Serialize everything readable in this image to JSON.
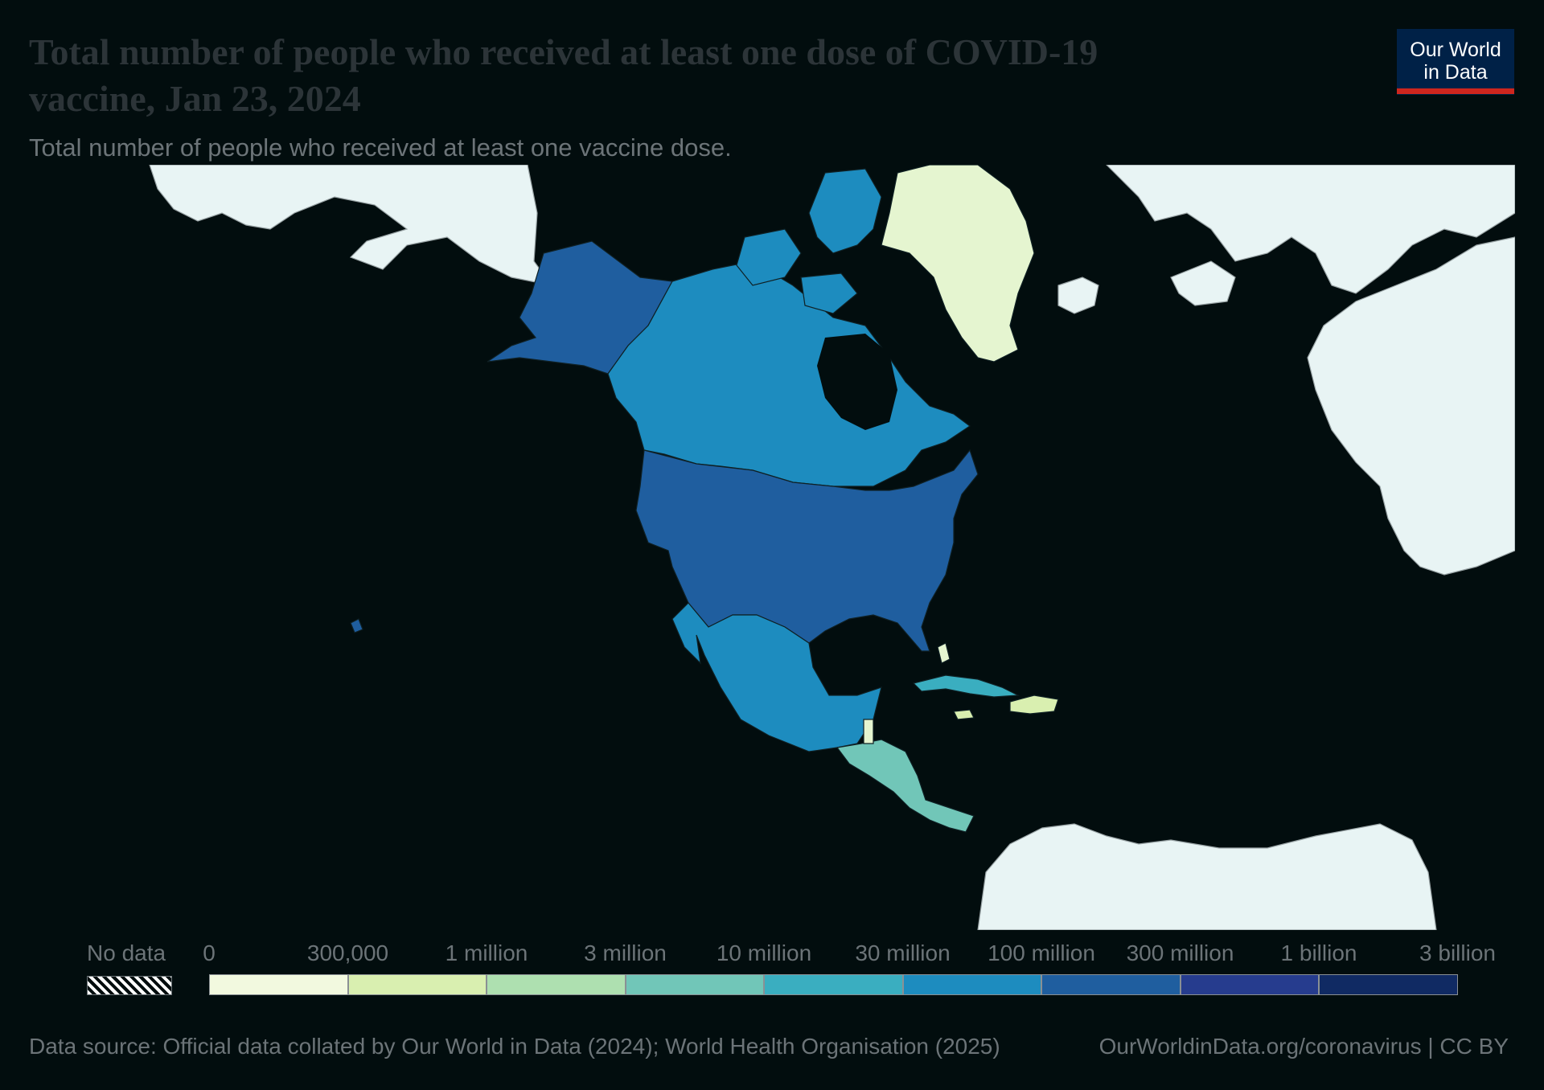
{
  "header": {
    "title": "Total number of people who received at least one dose of COVID-19 vaccine, Jan 23, 2024",
    "subtitle": "Total number of people who received at least one vaccine dose."
  },
  "logo": {
    "line1": "Our World",
    "line2": "in Data"
  },
  "legend": {
    "no_data_label": "No data",
    "ticks": [
      "0",
      "300,000",
      "1 million",
      "3 million",
      "10 million",
      "30 million",
      "100 million",
      "300 million",
      "1 billion",
      "3 billion"
    ],
    "colors": [
      "#f2f9df",
      "#d9efb0",
      "#aee0b0",
      "#71c6b8",
      "#3aaec0",
      "#1d8cbf",
      "#1f5e9f",
      "#263c8e",
      "#102a63"
    ]
  },
  "colors": {
    "background": "#020d0e",
    "other_land": "#e8f4f4",
    "united_states": "#1f5e9f",
    "canada": "#1d8cbf",
    "mexico": "#1d8cbf",
    "greenland": "#e5f5d0",
    "cuba": "#3aaec0",
    "central_america": "#71c6b8",
    "small_islands": "#d9efb0"
  },
  "footer": {
    "source": "Data source: Official data collated by Our World in Data (2024); World Health Organisation (2025)",
    "license": "OurWorldinData.org/coronavirus | CC BY"
  }
}
